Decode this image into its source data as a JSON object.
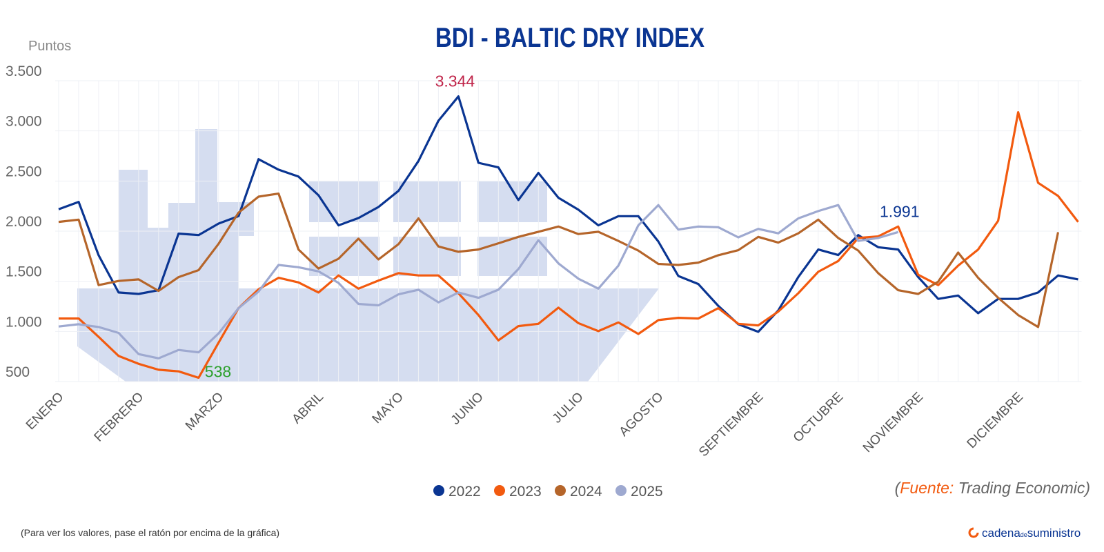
{
  "chart_data": {
    "type": "line",
    "title": "BDI - BALTIC DRY INDEX",
    "ylabel": "Puntos",
    "xlabel": "",
    "ylim": [
      500,
      3500
    ],
    "yticks": [
      500,
      1000,
      1500,
      2000,
      2500,
      3000,
      3500
    ],
    "ytick_labels": [
      "500",
      "1.000",
      "1.500",
      "2.000",
      "2.500",
      "3.000",
      "3.500"
    ],
    "x_unit": "week of year",
    "month_labels": [
      {
        "label": "ENERO",
        "week": 0
      },
      {
        "label": "FEBRERO",
        "week": 4
      },
      {
        "label": "MARZO",
        "week": 8
      },
      {
        "label": "ABRIL",
        "week": 13
      },
      {
        "label": "MAYO",
        "week": 17
      },
      {
        "label": "JUNIO",
        "week": 21
      },
      {
        "label": "JULIO",
        "week": 26
      },
      {
        "label": "AGOSTO",
        "week": 30
      },
      {
        "label": "SEPTIEMBRE",
        "week": 35
      },
      {
        "label": "OCTUBRE",
        "week": 39
      },
      {
        "label": "NOVIEMBRE",
        "week": 43
      },
      {
        "label": "DICIEMBRE",
        "week": 48
      }
    ],
    "grid": true,
    "legend_position": "bottom",
    "series": [
      {
        "name": "2022",
        "color": "#0a3592",
        "values": [
          2218,
          2292,
          1760,
          1388,
          1374,
          1411,
          1975,
          1961,
          2076,
          2149,
          2718,
          2613,
          2544,
          2358,
          2058,
          2131,
          2241,
          2402,
          2700,
          3101,
          3344,
          2681,
          2636,
          2310,
          2581,
          2333,
          2214,
          2058,
          2149,
          2149,
          1897,
          1553,
          1473,
          1255,
          1072,
          996,
          1209,
          1542,
          1817,
          1762,
          1961,
          1840,
          1817,
          1542,
          1324,
          1358,
          1182,
          1324,
          1324,
          1388,
          1558,
          1519
        ]
      },
      {
        "name": "2023",
        "color": "#f25a0f",
        "values": [
          1129,
          1129,
          946,
          755,
          677,
          618,
          602,
          538,
          888,
          1232,
          1420,
          1535,
          1489,
          1388,
          1558,
          1427,
          1507,
          1581,
          1558,
          1558,
          1381,
          1163,
          911,
          1053,
          1076,
          1237,
          1083,
          1003,
          1090,
          975,
          1113,
          1136,
          1129,
          1232,
          1076,
          1060,
          1198,
          1381,
          1595,
          1702,
          1932,
          1948,
          2046,
          1565,
          1462,
          1656,
          1817,
          2104,
          3186,
          2482,
          2351,
          2092
        ]
      },
      {
        "name": "2024",
        "color": "#b5652a",
        "values": [
          2092,
          2115,
          1462,
          1503,
          1519,
          1404,
          1542,
          1611,
          1874,
          2184,
          2344,
          2374,
          1817,
          1627,
          1725,
          1925,
          1718,
          1870,
          2127,
          1847,
          1794,
          1817,
          1879,
          1943,
          1994,
          2046,
          1971,
          1994,
          1902,
          1806,
          1673,
          1663,
          1686,
          1760,
          1810,
          1943,
          1886,
          1978,
          2115,
          1932,
          1806,
          1581,
          1411,
          1374,
          1496,
          1787,
          1535,
          1335,
          1163,
          1044,
          1989
        ]
      },
      {
        "name": "2025",
        "color": "#9ea9d0",
        "values": [
          1049,
          1072,
          1044,
          985,
          774,
          732,
          815,
          792,
          980,
          1232,
          1397,
          1663,
          1640,
          1599,
          1484,
          1274,
          1260,
          1370,
          1416,
          1290,
          1388,
          1335,
          1416,
          1622,
          1909,
          1679,
          1526,
          1427,
          1656,
          2058,
          2260,
          2016,
          2046,
          2039,
          1938,
          2023,
          1978,
          2127,
          2200,
          2260,
          1902,
          1932,
          1991
        ]
      }
    ],
    "annotations": [
      {
        "text": "3.344",
        "series": "2022",
        "week": 20,
        "value": 3344,
        "color": "#c0254a"
      },
      {
        "text": "538",
        "series": "2023",
        "week": 7,
        "value": 538,
        "color": "#2ca02c"
      },
      {
        "text": "1.991",
        "series": "2025",
        "week": 42,
        "value": 1991,
        "color": "#0a3592"
      }
    ],
    "background_decoration": "ship-silhouette",
    "decoration_color": "#d5ddf0"
  },
  "source": {
    "open": "(",
    "label": "Fuente",
    "colon": ":",
    "name": " Trading Economic)"
  },
  "footer_note": "(Para ver los valores, pase el ratón por encima de la gráfica)",
  "logo": {
    "text_main": "cadena",
    "text_small": "de",
    "text_end": "suministro"
  }
}
